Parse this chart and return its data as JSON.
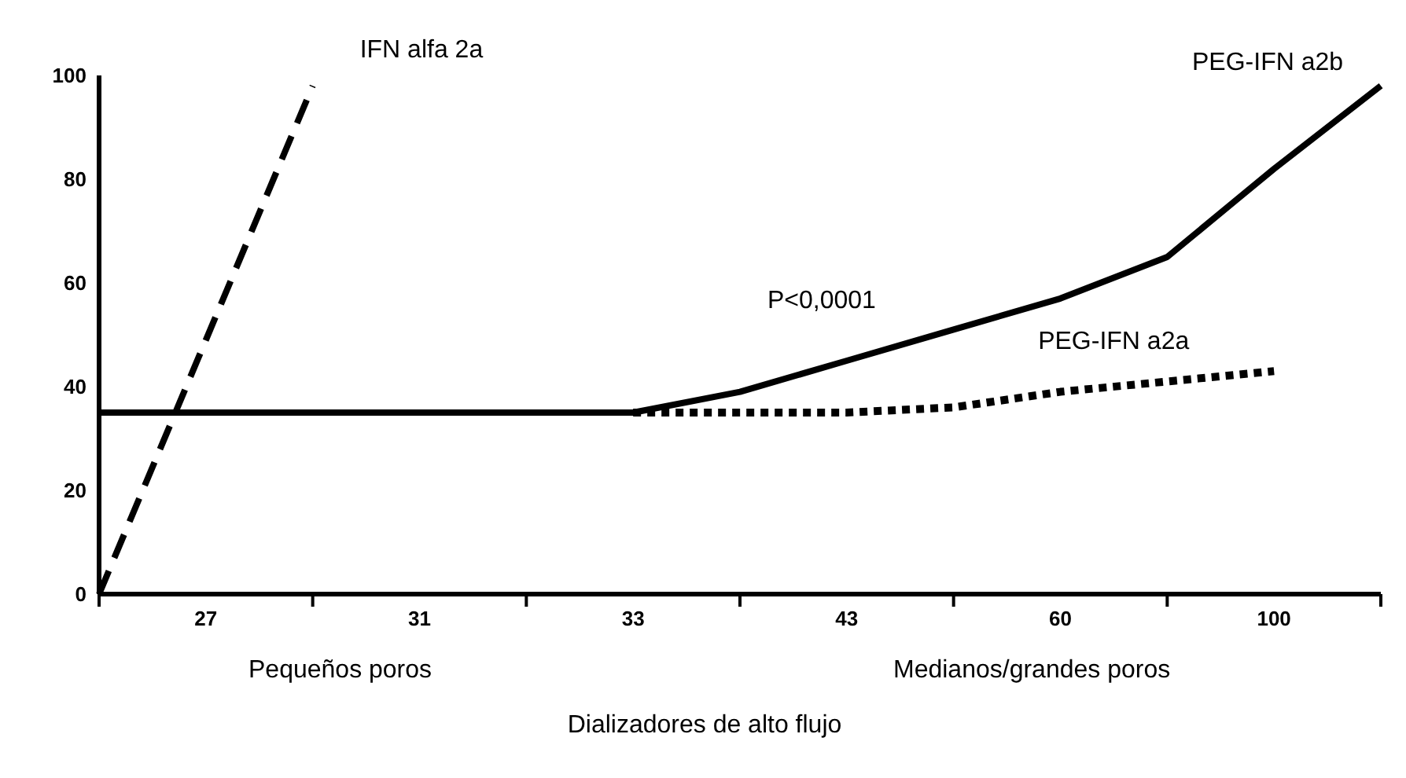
{
  "chart_data": {
    "type": "line",
    "xlabel": "Dializadores de alto flujo",
    "annotations": [
      "P<0,0001",
      "Pequeños poros",
      "Medianos/grandes poros"
    ],
    "categories": [
      null,
      "27",
      null,
      "31",
      null,
      "33",
      null,
      "43",
      null,
      "60",
      null,
      "100",
      null
    ],
    "ylim": [
      0,
      100
    ],
    "yticks": [
      0,
      20,
      40,
      60,
      80,
      100
    ],
    "grid": false,
    "legend": false,
    "marker": "none",
    "series": [
      {
        "name": "IFN alfa 2a",
        "color": "#000000",
        "line_style": "dashed",
        "values": [
          0,
          49,
          98,
          null,
          null,
          null,
          null,
          null,
          null,
          null,
          null,
          null,
          null
        ]
      },
      {
        "name": "PEG-IFN a2b",
        "color": "#000000",
        "line_style": "solid",
        "values": [
          35,
          35,
          35,
          35,
          35,
          35,
          39,
          45,
          51,
          57,
          65,
          82,
          98
        ]
      },
      {
        "name": "PEG-IFN a2a",
        "color": "#000000",
        "line_style": "dotted",
        "values": [
          null,
          null,
          null,
          null,
          null,
          35,
          35,
          35,
          36,
          39,
          41,
          43,
          null
        ]
      }
    ]
  }
}
